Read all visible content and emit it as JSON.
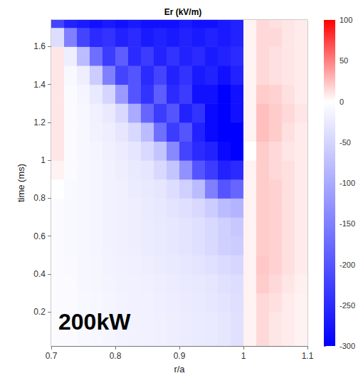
{
  "chart_data": {
    "type": "heatmap",
    "title": "Er (kV/m)",
    "xlabel": "r/a",
    "ylabel": "time (ms)",
    "annotations": [
      "200kW"
    ],
    "x": [
      0.71,
      0.73,
      0.75,
      0.77,
      0.79,
      0.81,
      0.83,
      0.85,
      0.87,
      0.89,
      0.91,
      0.93,
      0.95,
      0.97,
      0.99,
      1.01,
      1.03,
      1.05,
      1.07,
      1.09
    ],
    "y": [
      0.05,
      0.15,
      0.25,
      0.35,
      0.45,
      0.55,
      0.65,
      0.75,
      0.85,
      0.95,
      1.05,
      1.15,
      1.25,
      1.35,
      1.45,
      1.55,
      1.65,
      1.75
    ],
    "cells": [
      [
        -5,
        -5,
        -8,
        -10,
        -12,
        -14,
        -15,
        -16,
        -18,
        -20,
        -22,
        -24,
        -26,
        -30,
        -35,
        5,
        15,
        10,
        8,
        5
      ],
      [
        -5,
        -5,
        -8,
        -10,
        -12,
        -14,
        -15,
        -16,
        -18,
        -20,
        -22,
        -24,
        -26,
        -30,
        -35,
        5,
        15,
        10,
        8,
        5
      ],
      [
        -5,
        -6,
        -8,
        -10,
        -12,
        -14,
        -16,
        -17,
        -19,
        -21,
        -23,
        -25,
        -28,
        -32,
        -38,
        5,
        15,
        12,
        8,
        5
      ],
      [
        -5,
        -6,
        -9,
        -11,
        -13,
        -15,
        -17,
        -18,
        -20,
        -22,
        -25,
        -27,
        -30,
        -35,
        -40,
        5,
        20,
        15,
        10,
        6
      ],
      [
        -5,
        -7,
        -9,
        -11,
        -14,
        -16,
        -18,
        -20,
        -22,
        -25,
        -28,
        -32,
        -36,
        -42,
        -48,
        5,
        22,
        18,
        12,
        8
      ],
      [
        -5,
        -8,
        -10,
        -12,
        -15,
        -18,
        -20,
        -22,
        -25,
        -28,
        -32,
        -38,
        -45,
        -55,
        -60,
        5,
        20,
        18,
        12,
        8
      ],
      [
        -5,
        -8,
        -10,
        -12,
        -15,
        -18,
        -20,
        -22,
        -25,
        -28,
        -32,
        -38,
        -45,
        -55,
        -65,
        5,
        20,
        18,
        12,
        8
      ],
      [
        -5,
        -8,
        -10,
        -12,
        -15,
        -18,
        -20,
        -23,
        -27,
        -32,
        -38,
        -45,
        -60,
        -80,
        -90,
        5,
        20,
        18,
        12,
        8
      ],
      [
        0,
        -8,
        -10,
        -12,
        -15,
        -18,
        -22,
        -25,
        -30,
        -40,
        -55,
        -80,
        -150,
        -200,
        -180,
        5,
        20,
        18,
        12,
        8
      ],
      [
        5,
        -5,
        -10,
        -12,
        -15,
        -20,
        -25,
        -30,
        -45,
        -70,
        -130,
        -200,
        -230,
        -260,
        -250,
        5,
        20,
        15,
        12,
        8
      ],
      [
        10,
        -5,
        -10,
        -12,
        -18,
        -22,
        -30,
        -45,
        -70,
        -140,
        -220,
        -250,
        -260,
        -290,
        -300,
        0,
        20,
        15,
        10,
        8
      ],
      [
        10,
        -5,
        -10,
        -15,
        -20,
        -30,
        -45,
        -80,
        -170,
        -230,
        -200,
        -260,
        -290,
        -300,
        -300,
        5,
        25,
        20,
        12,
        8
      ],
      [
        10,
        -5,
        -10,
        -18,
        -25,
        -45,
        -100,
        -180,
        -230,
        -200,
        -260,
        -240,
        -290,
        -300,
        -280,
        5,
        25,
        20,
        15,
        10
      ],
      [
        10,
        -5,
        -12,
        -25,
        -50,
        -120,
        -200,
        -240,
        -190,
        -250,
        -230,
        -280,
        -280,
        -300,
        -280,
        5,
        20,
        18,
        12,
        8
      ],
      [
        10,
        -8,
        -20,
        -60,
        -150,
        -220,
        -200,
        -250,
        -220,
        -260,
        -240,
        -270,
        -260,
        -280,
        -260,
        5,
        15,
        12,
        10,
        8
      ],
      [
        10,
        -20,
        -80,
        -170,
        -230,
        -190,
        -250,
        -230,
        -260,
        -240,
        -260,
        -250,
        -270,
        -260,
        -250,
        5,
        15,
        12,
        10,
        8
      ],
      [
        -40,
        -150,
        -220,
        -250,
        -240,
        -260,
        -250,
        -270,
        -260,
        -270,
        -260,
        -270,
        -260,
        -270,
        -260,
        5,
        15,
        15,
        10,
        8
      ],
      [
        -220,
        -260,
        -270,
        -280,
        -270,
        -280,
        -270,
        -280,
        -280,
        -280,
        -270,
        -280,
        -280,
        -270,
        -260,
        5,
        15,
        12,
        10,
        8
      ]
    ],
    "xlim": [
      0.7,
      1.1
    ],
    "xticks": [
      0.7,
      0.8,
      0.9,
      1,
      1.1
    ],
    "ylim": [
      0.02,
      1.74
    ],
    "yticks": [
      0.2,
      0.4,
      0.6,
      0.8,
      1,
      1.2,
      1.4,
      1.6
    ],
    "colorbar_range": [
      -300,
      100
    ],
    "colorbar_ticks": [
      100,
      50,
      0,
      -50,
      -100,
      -150,
      -200,
      -250,
      -300
    ]
  }
}
